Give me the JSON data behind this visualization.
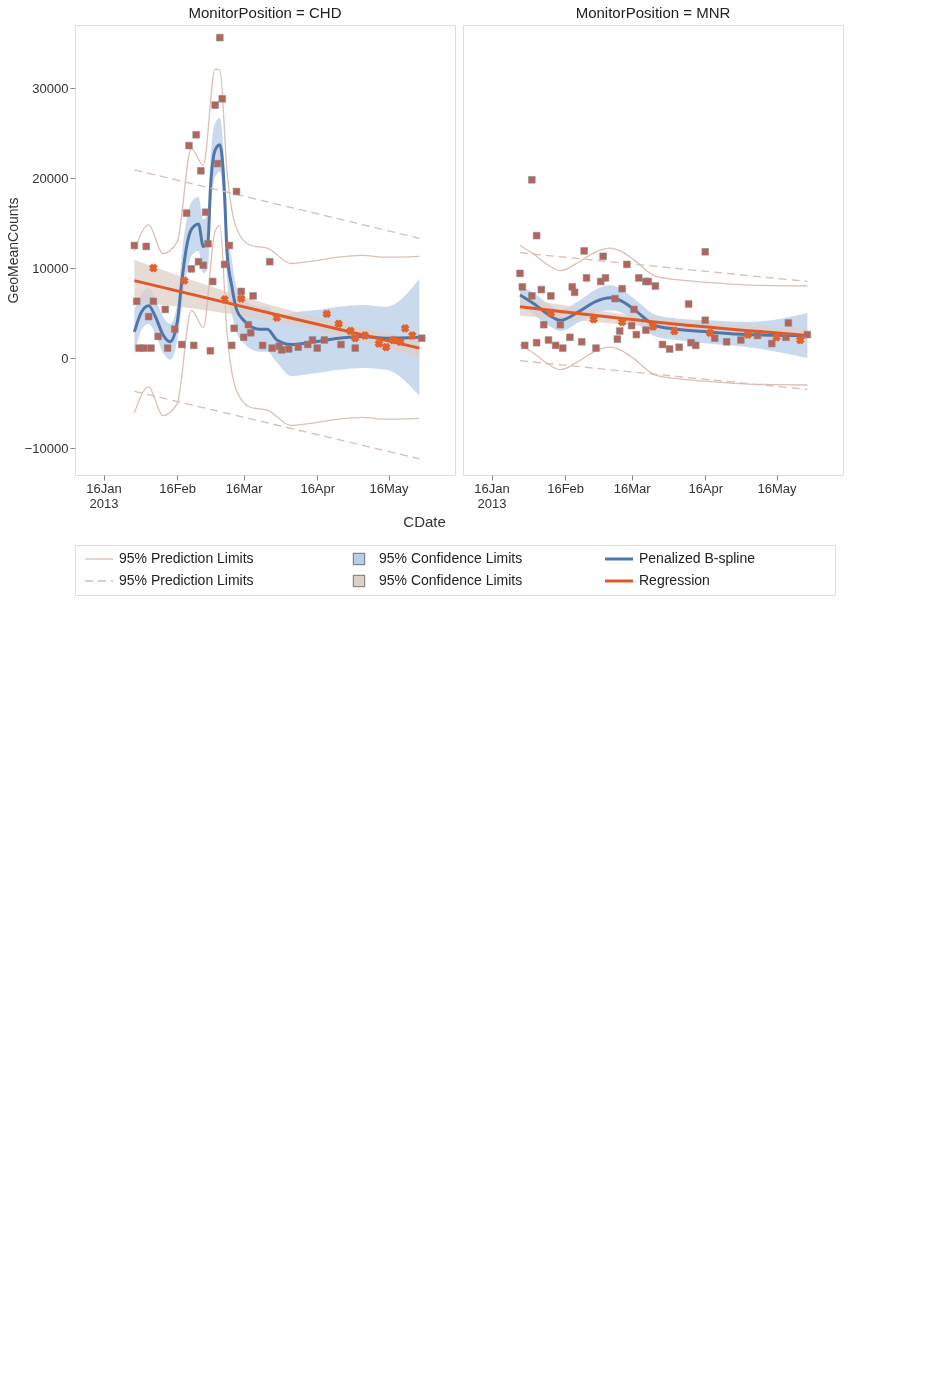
{
  "chart_data": [
    {
      "type": "line",
      "title": "MonitorPosition = CHD",
      "xlabel": "CDate",
      "ylabel": "GeoMeanCounts",
      "legend": "bottom",
      "xlim": [
        "2013-01-04",
        "2013-06-13"
      ],
      "ylim": [
        -13000,
        37000
      ],
      "xticks": [
        {
          "value": "2013-01-16",
          "label": "16Jan\n2013"
        },
        {
          "value": "2013-02-16",
          "label": "16Feb"
        },
        {
          "value": "2013-03-16",
          "label": "16Mar"
        },
        {
          "value": "2013-04-16",
          "label": "16Apr"
        },
        {
          "value": "2013-05-16",
          "label": "16May"
        }
      ],
      "yticks": [
        30000,
        20000,
        10000,
        0,
        -10000
      ],
      "series": [
        {
          "name": "95% Prediction Limits",
          "type": "line",
          "line_style": "solid",
          "color": "#dcbfb6",
          "x": [
            "2013-01-29",
            "2013-02-04",
            "2013-02-10",
            "2013-02-16",
            "2013-02-22",
            "2013-02-27",
            "2013-03-04",
            "2013-03-06",
            "2013-03-09",
            "2013-03-13",
            "2013-03-19",
            "2013-03-26",
            "2013-04-05",
            "2013-04-15",
            "2013-04-25",
            "2013-05-05",
            "2013-05-15",
            "2013-05-29"
          ],
          "values": [
            11900,
            14800,
            11600,
            12900,
            23300,
            21400,
            32100,
            32000,
            20800,
            14400,
            12500,
            12200,
            10500,
            10800,
            11200,
            11400,
            11200,
            11300
          ]
        },
        {
          "type": "line",
          "line_style": "solid",
          "color": "#dcbfb6",
          "x": [
            "2013-01-29",
            "2013-02-04",
            "2013-02-10",
            "2013-02-16",
            "2013-02-22",
            "2013-02-27",
            "2013-03-04",
            "2013-03-06",
            "2013-03-09",
            "2013-03-13",
            "2013-03-19",
            "2013-03-26",
            "2013-04-05",
            "2013-04-15",
            "2013-04-25",
            "2013-05-05",
            "2013-05-15",
            "2013-05-29"
          ],
          "values": [
            -6100,
            -3200,
            -6400,
            -5100,
            5300,
            3400,
            14100,
            14700,
            2800,
            -3600,
            -5500,
            -5800,
            -7500,
            -7200,
            -6800,
            -6600,
            -6800,
            -6700
          ]
        },
        {
          "name": "95% Confidence Limits",
          "type": "area",
          "color": "#b8cde8"
        },
        {
          "name": "Penalized B-spline",
          "type": "line",
          "line_style": "solid",
          "color": "#4f75aa",
          "x": [
            "2013-01-29",
            "2013-02-01",
            "2013-02-04",
            "2013-02-07",
            "2013-02-10",
            "2013-02-13",
            "2013-02-16",
            "2013-02-18",
            "2013-02-20",
            "2013-02-22",
            "2013-02-25",
            "2013-02-27",
            "2013-03-01",
            "2013-03-02",
            "2013-03-04",
            "2013-03-06",
            "2013-03-08",
            "2013-03-09",
            "2013-03-11",
            "2013-03-13",
            "2013-03-16",
            "2013-03-19",
            "2013-03-23",
            "2013-03-26",
            "2013-03-30",
            "2013-04-05",
            "2013-04-15",
            "2013-04-25",
            "2013-05-05",
            "2013-05-15",
            "2013-05-29"
          ],
          "values": [
            2900,
            5100,
            5800,
            4500,
            2600,
            1800,
            3900,
            8600,
            12400,
            14300,
            14900,
            12400,
            13000,
            18700,
            23100,
            23700,
            18000,
            11800,
            8000,
            5400,
            4200,
            3500,
            3200,
            3200,
            2000,
            1500,
            1800,
            2200,
            2400,
            2200,
            2300
          ],
          "lower": [
            400,
            3100,
            3800,
            2500,
            600,
            -200,
            1900,
            5600,
            9400,
            11300,
            11900,
            9400,
            10000,
            15700,
            20100,
            20700,
            15000,
            8800,
            5000,
            2900,
            1700,
            1000,
            700,
            700,
            -500,
            -2000,
            -1700,
            -1300,
            -1100,
            -1300,
            -4200
          ],
          "upper": [
            5400,
            7100,
            7800,
            6500,
            4600,
            3800,
            5900,
            11600,
            15400,
            17300,
            17900,
            15400,
            16000,
            21700,
            26100,
            26700,
            21000,
            14800,
            11000,
            7900,
            6700,
            6000,
            5700,
            5700,
            4500,
            5000,
            5300,
            5700,
            5900,
            5700,
            8800
          ]
        },
        {
          "name": "95% Prediction Limits",
          "type": "line",
          "line_style": "dashed",
          "color": "#d9bdb4",
          "x": [
            "2013-01-29",
            "2013-05-29"
          ],
          "values": [
            20900,
            13300
          ]
        },
        {
          "type": "line",
          "line_style": "dashed",
          "color": "#d9bdb4",
          "x": [
            "2013-01-29",
            "2013-05-29"
          ],
          "values": [
            -3700,
            -11200
          ]
        },
        {
          "name": "95% Confidence Limits",
          "type": "area",
          "color": "#dcd0c8"
        },
        {
          "name": "Regression",
          "type": "line",
          "line_style": "solid",
          "color": "#e0582a",
          "x": [
            "2013-01-29",
            "2013-03-30",
            "2013-05-29"
          ],
          "values": [
            8600,
            4800,
            1100
          ],
          "lower": [
            6300,
            4000,
            100
          ],
          "upper": [
            10900,
            5700,
            2000
          ]
        },
        {
          "type": "scatter",
          "marker": "square",
          "color": "#b4645a",
          "x": [
            "2013-03-06",
            "2013-03-07",
            "2013-03-04",
            "2013-02-24",
            "2013-02-21",
            "2013-03-05",
            "2013-02-26",
            "2013-03-13",
            "2013-02-28",
            "2013-02-20",
            "2013-03-01",
            "2013-03-10",
            "2013-02-03",
            "2013-01-29",
            "2013-03-08",
            "2013-02-27",
            "2013-02-25",
            "2013-02-22",
            "2013-03-03",
            "2013-03-20",
            "2013-03-15",
            "2013-02-11",
            "2013-02-06",
            "2013-02-04",
            "2013-01-30",
            "2013-02-15",
            "2013-02-08",
            "2013-03-18",
            "2013-03-19",
            "2013-03-16",
            "2013-03-12",
            "2013-03-11",
            "2013-03-02",
            "2013-02-23",
            "2013-02-18",
            "2013-02-05",
            "2013-02-02",
            "2013-01-31",
            "2013-02-12",
            "2013-03-27",
            "2013-05-30",
            "2013-05-02",
            "2013-04-26",
            "2013-04-19",
            "2013-04-16",
            "2013-04-12",
            "2013-04-08",
            "2013-04-04",
            "2013-03-31",
            "2013-03-28",
            "2013-03-24",
            "2013-04-14",
            "2013-04-01"
          ],
          "values": [
            35600,
            28800,
            28100,
            24800,
            23600,
            21600,
            20800,
            18500,
            16200,
            16100,
            12700,
            12500,
            12400,
            12500,
            10400,
            10300,
            10700,
            9900,
            8500,
            6900,
            7400,
            5400,
            6300,
            4600,
            6300,
            3200,
            2400,
            3700,
            2800,
            2300,
            3300,
            1400,
            800,
            1400,
            1500,
            1100,
            1100,
            1100,
            1100,
            10700,
            2200,
            1100,
            1500,
            2000,
            1100,
            1500,
            1200,
            1000,
            1300,
            1100,
            1400,
            2000,
            900
          ]
        },
        {
          "type": "scatter",
          "marker": "cross",
          "color": "#e0622e",
          "x": [
            "2013-02-19",
            "2013-02-06",
            "2013-03-15",
            "2013-03-08",
            "2013-04-20",
            "2013-05-23",
            "2013-05-26",
            "2013-05-18",
            "2013-05-12",
            "2013-05-06",
            "2013-04-30",
            "2013-04-25",
            "2013-05-02",
            "2013-05-15",
            "2013-05-21",
            "2013-03-30"
          ],
          "values": [
            8600,
            10000,
            6600,
            6500,
            4900,
            3300,
            2500,
            2000,
            1600,
            2500,
            3000,
            3800,
            2200,
            1200,
            1800,
            4500
          ]
        }
      ]
    },
    {
      "type": "line",
      "title": "MonitorPosition = MNR",
      "tick_labels": "x",
      "xlim": [
        "2013-01-04",
        "2013-06-13"
      ],
      "ylim": [
        -13000,
        37000
      ],
      "xticks": [
        {
          "value": "2013-01-16",
          "label": "16Jan\n2013"
        },
        {
          "value": "2013-02-16",
          "label": "16Feb"
        },
        {
          "value": "2013-03-16",
          "label": "16Mar"
        },
        {
          "value": "2013-04-16",
          "label": "16Apr"
        },
        {
          "value": "2013-05-16",
          "label": "16May"
        }
      ],
      "yticks": [
        30000,
        20000,
        10000,
        0,
        -10000
      ],
      "series": [
        {
          "type": "line",
          "line_style": "solid",
          "color": "#dcbfb6",
          "x": [
            "2013-01-28",
            "2013-02-03",
            "2013-02-09",
            "2013-02-14",
            "2013-02-22",
            "2013-03-01",
            "2013-03-07",
            "2013-03-12",
            "2013-03-17",
            "2013-03-26",
            "2013-04-04",
            "2013-04-17",
            "2013-05-04",
            "2013-05-29"
          ],
          "values": [
            12500,
            11500,
            10300,
            9700,
            10700,
            11800,
            12200,
            11800,
            10900,
            9100,
            8700,
            8400,
            8100,
            8000
          ]
        },
        {
          "type": "line",
          "line_style": "solid",
          "color": "#dcbfb6",
          "x": [
            "2013-01-28",
            "2013-02-03",
            "2013-02-09",
            "2013-02-14",
            "2013-02-22",
            "2013-03-01",
            "2013-03-07",
            "2013-03-12",
            "2013-03-17",
            "2013-03-26",
            "2013-04-04",
            "2013-04-17",
            "2013-05-04",
            "2013-05-29"
          ],
          "values": [
            1500,
            500,
            -700,
            -1300,
            -300,
            800,
            1200,
            800,
            -100,
            -1900,
            -2300,
            -2600,
            -2900,
            -3000
          ]
        },
        {
          "type": "area",
          "color": "#b8cde8"
        },
        {
          "type": "line",
          "line_style": "solid",
          "color": "#4f75aa",
          "x": [
            "2013-01-28",
            "2013-02-03",
            "2013-02-09",
            "2013-02-14",
            "2013-02-22",
            "2013-03-01",
            "2013-03-07",
            "2013-03-12",
            "2013-03-17",
            "2013-03-26",
            "2013-04-04",
            "2013-04-17",
            "2013-05-04",
            "2013-05-29"
          ],
          "values": [
            7000,
            6000,
            4800,
            4200,
            5200,
            6300,
            6700,
            6300,
            5400,
            3600,
            3200,
            2900,
            2600,
            2500
          ],
          "lower": [
            6000,
            4800,
            3600,
            3000,
            4000,
            5000,
            5300,
            5000,
            4200,
            2400,
            2000,
            1600,
            1200,
            0
          ],
          "upper": [
            8000,
            7200,
            6000,
            5400,
            6400,
            7600,
            8100,
            7600,
            6600,
            4800,
            4400,
            4200,
            4000,
            5000
          ]
        },
        {
          "type": "line",
          "line_style": "dashed",
          "color": "#d9bdb4",
          "x": [
            "2013-01-28",
            "2013-05-29"
          ],
          "values": [
            11700,
            8500
          ]
        },
        {
          "type": "line",
          "line_style": "dashed",
          "color": "#d9bdb4",
          "x": [
            "2013-01-28",
            "2013-05-29"
          ],
          "values": [
            -300,
            -3500
          ]
        },
        {
          "type": "area",
          "color": "#dcd0c8"
        },
        {
          "type": "line",
          "line_style": "solid",
          "color": "#e0582a",
          "x": [
            "2013-01-28",
            "2013-03-30",
            "2013-05-29"
          ],
          "values": [
            5700,
            3900,
            2500
          ],
          "lower": [
            4700,
            3300,
            1700
          ],
          "upper": [
            6700,
            4300,
            3300
          ]
        },
        {
          "type": "scatter",
          "marker": "square",
          "color": "#b4645a",
          "x": [
            "2013-02-02",
            "2013-02-04",
            "2013-02-24",
            "2013-03-04",
            "2013-03-14",
            "2013-03-22",
            "2013-03-19",
            "2013-03-12",
            "2013-03-05",
            "2013-03-03",
            "2013-02-25",
            "2013-02-19",
            "2013-02-20",
            "2013-02-10",
            "2013-02-06",
            "2013-02-02",
            "2013-01-28",
            "2013-01-29",
            "2013-03-09",
            "2013-03-17",
            "2013-03-11",
            "2013-03-10",
            "2013-03-01",
            "2013-02-23",
            "2013-02-18",
            "2013-02-15",
            "2013-02-14",
            "2013-02-12",
            "2013-02-07",
            "2013-02-09",
            "2013-02-04",
            "2013-01-30",
            "2013-03-16",
            "2013-03-18",
            "2013-03-22",
            "2013-04-16",
            "2013-04-09",
            "2013-03-26",
            "2013-03-23",
            "2013-04-16",
            "2013-04-10",
            "2013-04-05",
            "2013-04-01",
            "2013-03-29",
            "2013-04-12",
            "2013-04-20",
            "2013-04-25",
            "2013-05-01",
            "2013-05-08",
            "2013-05-14",
            "2013-05-20",
            "2013-05-29",
            "2013-05-21"
          ],
          "values": [
            19800,
            13600,
            11900,
            11300,
            10400,
            8500,
            8900,
            7700,
            8900,
            8500,
            8900,
            7900,
            7300,
            6900,
            7600,
            6900,
            9400,
            7900,
            6600,
            5400,
            3000,
            2100,
            1100,
            1800,
            2300,
            1100,
            3700,
            1400,
            3700,
            2000,
            1700,
            1400,
            3600,
            2600,
            3100,
            11800,
            6000,
            8000,
            8500,
            4200,
            1700,
            1200,
            1000,
            1500,
            1400,
            2200,
            1800,
            2000,
            2500,
            1600,
            2300,
            2600,
            3900
          ]
        },
        {
          "type": "scatter",
          "marker": "cross",
          "color": "#e0622e",
          "x": [
            "2013-03-25",
            "2013-04-03",
            "2013-04-18",
            "2013-05-04",
            "2013-05-16",
            "2013-05-26",
            "2013-03-12",
            "2013-02-28",
            "2013-02-10"
          ],
          "values": [
            3500,
            3000,
            2800,
            2600,
            2300,
            2000,
            4000,
            4300,
            5000
          ]
        }
      ]
    }
  ]
}
